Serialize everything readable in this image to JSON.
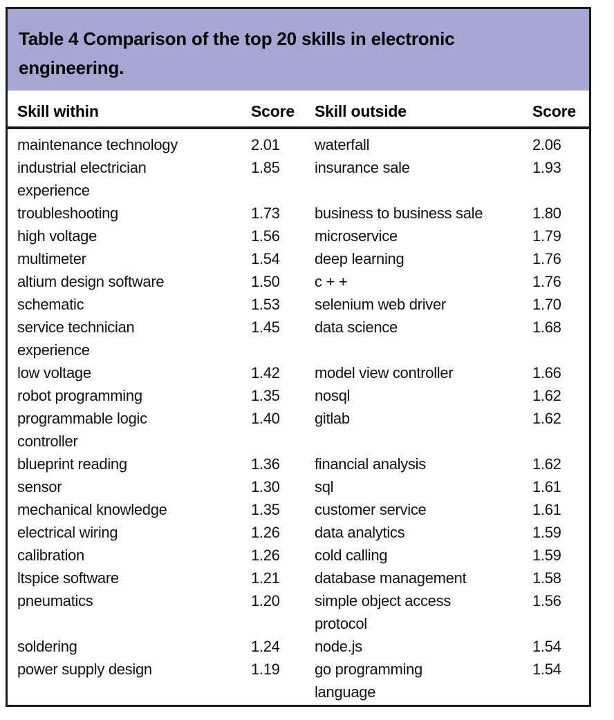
{
  "colors": {
    "title_band_bg": "#a7a6d2",
    "border": "#1a1a1a",
    "text": "#111111"
  },
  "table": {
    "title": "Table 4 Comparison of the top 20 skills in electronic\nengineering.",
    "columns": [
      "Skill within",
      "Score",
      "Skill outside",
      "Score"
    ],
    "rows": [
      {
        "within": "maintenance technology",
        "within_score": "2.01",
        "outside": "waterfall",
        "outside_score": "2.06"
      },
      {
        "within": "industrial electrician\nexperience",
        "within_score": "1.85",
        "outside": "insurance sale",
        "outside_score": "1.93"
      },
      {
        "within": "troubleshooting",
        "within_score": "1.73",
        "outside": "business to business sale",
        "outside_score": "1.80"
      },
      {
        "within": "high voltage",
        "within_score": "1.56",
        "outside": "microservice",
        "outside_score": "1.79"
      },
      {
        "within": "multimeter",
        "within_score": "1.54",
        "outside": "deep learning",
        "outside_score": "1.76"
      },
      {
        "within": "altium design software",
        "within_score": "1.50",
        "outside": "c + +",
        "outside_score": "1.76"
      },
      {
        "within": "schematic",
        "within_score": "1.53",
        "outside": "selenium web driver",
        "outside_score": "1.70"
      },
      {
        "within": "service technician\nexperience",
        "within_score": "1.45",
        "outside": "data science",
        "outside_score": "1.68"
      },
      {
        "within": "low voltage",
        "within_score": "1.42",
        "outside": "model view controller",
        "outside_score": "1.66"
      },
      {
        "within": "robot programming",
        "within_score": "1.35",
        "outside": "nosql",
        "outside_score": "1.62"
      },
      {
        "within": "programmable logic\ncontroller",
        "within_score": "1.40",
        "outside": "gitlab",
        "outside_score": "1.62"
      },
      {
        "within": "blueprint reading",
        "within_score": "1.36",
        "outside": "financial analysis",
        "outside_score": "1.62"
      },
      {
        "within": "sensor",
        "within_score": "1.30",
        "outside": "sql",
        "outside_score": "1.61"
      },
      {
        "within": "mechanical knowledge",
        "within_score": "1.35",
        "outside": "customer service",
        "outside_score": "1.61"
      },
      {
        "within": "electrical wiring",
        "within_score": "1.26",
        "outside": "data analytics",
        "outside_score": "1.59"
      },
      {
        "within": "calibration",
        "within_score": "1.26",
        "outside": "cold calling",
        "outside_score": "1.59"
      },
      {
        "within": "ltspice software",
        "within_score": "1.21",
        "outside": "database management",
        "outside_score": "1.58"
      },
      {
        "within": "pneumatics",
        "within_score": "1.20",
        "outside": "simple object access\nprotocol",
        "outside_score": "1.56"
      },
      {
        "within": "soldering",
        "within_score": "1.24",
        "outside": "node.js",
        "outside_score": "1.54"
      },
      {
        "within": "power supply design",
        "within_score": "1.19",
        "outside": "go programming\nlanguage",
        "outside_score": "1.54"
      }
    ]
  }
}
